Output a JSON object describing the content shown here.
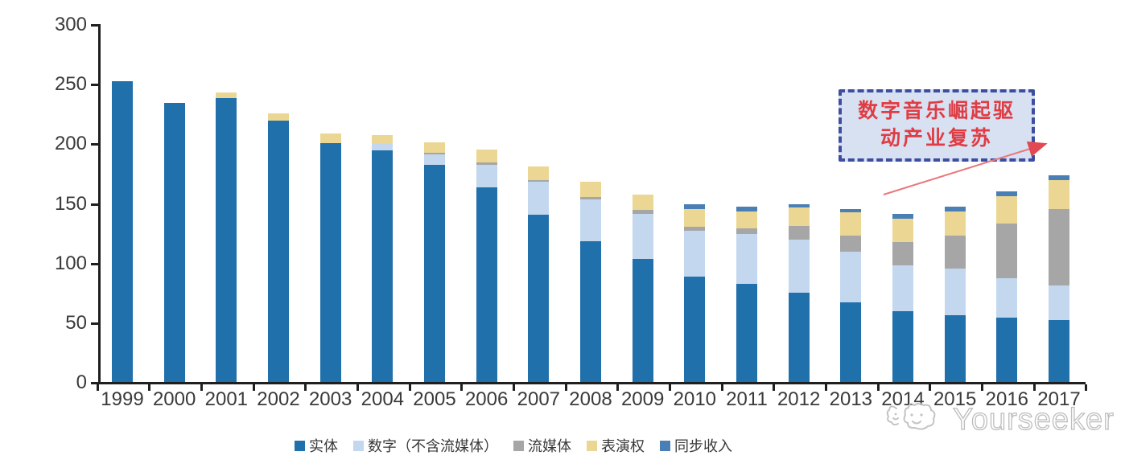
{
  "chart_data": {
    "type": "bar",
    "stacked": true,
    "title": "",
    "xlabel": "",
    "ylabel": "",
    "ylim": [
      0,
      300
    ],
    "ytick_labels": [
      "0",
      "50",
      "100",
      "150",
      "200",
      "250",
      "300"
    ],
    "grid": false,
    "legend_position": "bottom",
    "categories": [
      "1999",
      "2000",
      "2001",
      "2002",
      "2003",
      "2004",
      "2005",
      "2006",
      "2007",
      "2008",
      "2009",
      "2010",
      "2011",
      "2012",
      "2013",
      "2014",
      "2015",
      "2016",
      "2017"
    ],
    "series": [
      {
        "name": "实体",
        "color": "#2070ac",
        "values": [
          252,
          234,
          238,
          219,
          200,
          194,
          182,
          163,
          140,
          118,
          103,
          88,
          82,
          75,
          67,
          59,
          56,
          54,
          52
        ]
      },
      {
        "name": "数字（不含流媒体）",
        "color": "#c3d8ee",
        "values": [
          0,
          0,
          0,
          0,
          0,
          6,
          9,
          19,
          28,
          35,
          38,
          39,
          42,
          44,
          42,
          39,
          39,
          33,
          29
        ]
      },
      {
        "name": "流媒体",
        "color": "#a6a6a6",
        "values": [
          0,
          0,
          0,
          0,
          0,
          0,
          1,
          2,
          1,
          2,
          3,
          3,
          5,
          12,
          14,
          19,
          28,
          46,
          64
        ]
      },
      {
        "name": "表演权",
        "color": "#ebd793",
        "values": [
          0,
          0,
          5,
          6,
          8,
          7,
          9,
          11,
          12,
          13,
          13,
          15,
          14,
          15,
          19,
          20,
          20,
          23,
          24
        ]
      },
      {
        "name": "同步收入",
        "color": "#4a7fb5",
        "values": [
          0,
          0,
          0,
          0,
          0,
          0,
          0,
          0,
          0,
          0,
          0,
          4,
          4,
          3,
          3,
          4,
          4,
          4,
          4
        ]
      }
    ],
    "totals": [
      252,
      234,
      243,
      225,
      208,
      207,
      201,
      195,
      181,
      168,
      157,
      149,
      147,
      149,
      145,
      141,
      147,
      160,
      173
    ]
  },
  "annotation": {
    "line1": "数字音乐崛起驱",
    "line2": "动产业复苏",
    "border_color": "#3d4ea1",
    "fill_color": "#d8e1f2",
    "text_color": "#e03c44",
    "arrow_color": "#e85a5e"
  },
  "watermark": {
    "text": "Yourseeker",
    "logo": "yourseeker-mascot",
    "color": "#bdbdbd"
  }
}
